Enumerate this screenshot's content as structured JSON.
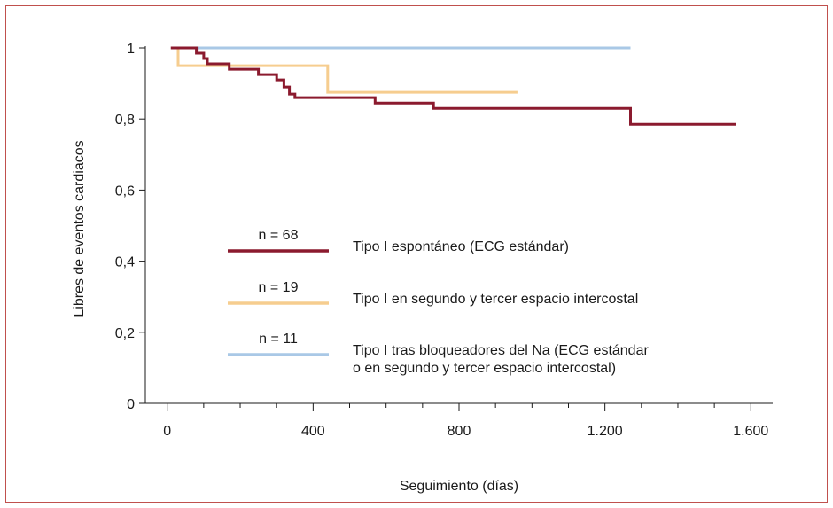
{
  "chart_data": {
    "type": "line",
    "title": "",
    "xlabel": "Seguimiento (días)",
    "ylabel": "Libres de eventos cardiacos",
    "xlim": [
      -60,
      1660
    ],
    "ylim": [
      0,
      1
    ],
    "x_ticks": [
      {
        "value": 0,
        "label": "0"
      },
      {
        "value": 400,
        "label": "400"
      },
      {
        "value": 800,
        "label": "800"
      },
      {
        "value": 1200,
        "label": "1.200"
      },
      {
        "value": 1600,
        "label": "1.600"
      }
    ],
    "x_minor_ticks": [
      100,
      200,
      300,
      500,
      600,
      700,
      900,
      1000,
      1100,
      1300,
      1400,
      1500
    ],
    "y_ticks": [
      {
        "value": 0,
        "label": "0"
      },
      {
        "value": 0.2,
        "label": "0,2"
      },
      {
        "value": 0.4,
        "label": "0,4"
      },
      {
        "value": 0.6,
        "label": "0,6"
      },
      {
        "value": 0.8,
        "label": "0,8"
      },
      {
        "value": 1,
        "label": "1"
      }
    ],
    "grid": false,
    "legend_position": "center-left",
    "series": [
      {
        "n_label": "n = 68",
        "name": "Tipo I espontáneo (ECG estándar)",
        "color": "#8b1a2e",
        "step_points": [
          [
            10,
            1
          ],
          [
            80,
            1
          ],
          [
            80,
            0.985
          ],
          [
            100,
            0.985
          ],
          [
            100,
            0.97
          ],
          [
            110,
            0.97
          ],
          [
            110,
            0.955
          ],
          [
            170,
            0.955
          ],
          [
            170,
            0.94
          ],
          [
            250,
            0.94
          ],
          [
            250,
            0.925
          ],
          [
            300,
            0.925
          ],
          [
            300,
            0.91
          ],
          [
            320,
            0.91
          ],
          [
            320,
            0.89
          ],
          [
            335,
            0.89
          ],
          [
            335,
            0.87
          ],
          [
            350,
            0.87
          ],
          [
            350,
            0.86
          ],
          [
            570,
            0.86
          ],
          [
            570,
            0.845
          ],
          [
            730,
            0.845
          ],
          [
            730,
            0.83
          ],
          [
            1270,
            0.83
          ],
          [
            1270,
            0.785
          ],
          [
            1560,
            0.785
          ]
        ]
      },
      {
        "n_label": "n = 19",
        "name": "Tipo I en segundo y tercer espacio intercostal",
        "color": "#f6cd8f",
        "step_points": [
          [
            10,
            1
          ],
          [
            30,
            1
          ],
          [
            30,
            0.95
          ],
          [
            440,
            0.95
          ],
          [
            440,
            0.875
          ],
          [
            960,
            0.875
          ]
        ]
      },
      {
        "n_label": "n = 11",
        "name": "Tipo I tras bloqueadores del Na (ECG estándar o en segundo y tercer espacio intercostal)",
        "name_lines": [
          "Tipo I tras bloqueadores del Na (ECG estándar",
          "o en segundo y tercer espacio intercostal)"
        ],
        "color": "#a9c8e6",
        "step_points": [
          [
            10,
            1
          ],
          [
            1270,
            1
          ]
        ]
      }
    ]
  }
}
